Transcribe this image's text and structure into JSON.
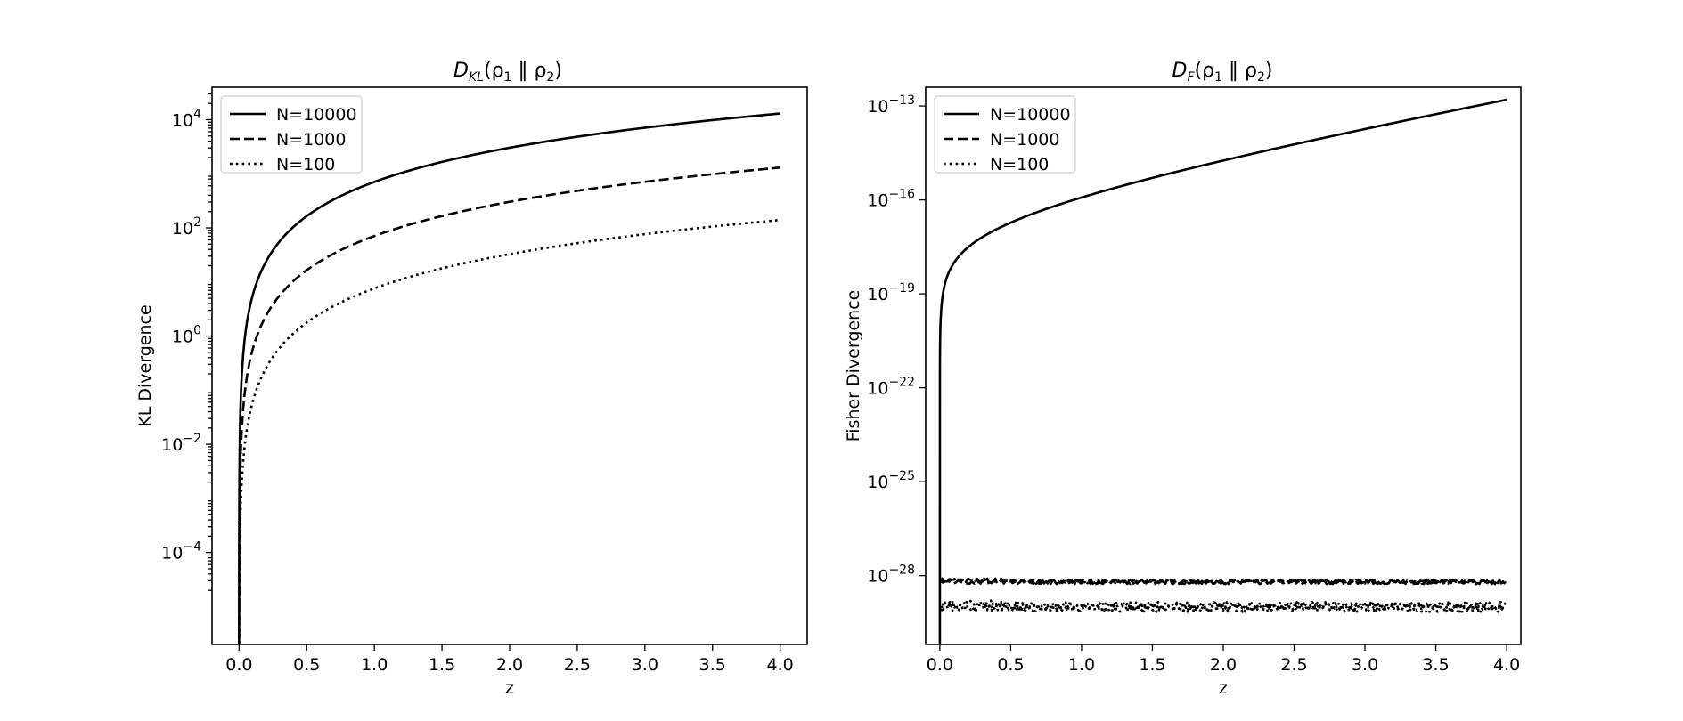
{
  "chart_data": [
    {
      "type": "line",
      "title_main": "D",
      "title_sub": "KL",
      "title_rest_open": "(ρ",
      "title_sub1": "1",
      "title_sep": " ‖ ρ",
      "title_sub2": "2",
      "title_close": ")",
      "xlabel": "z",
      "ylabel": "KL Divergence",
      "y_scale": "log",
      "xlim": [
        -0.2,
        4.2
      ],
      "ylim_log10": [
        -5.7,
        4.6
      ],
      "x_ticks": [
        "0.0",
        "0.5",
        "1.0",
        "1.5",
        "2.0",
        "2.5",
        "3.0",
        "3.5",
        "4.0"
      ],
      "y_ticks": [
        {
          "base": "10",
          "exp": "4",
          "value_log10": 4
        },
        {
          "base": "10",
          "exp": "2",
          "value_log10": 2
        },
        {
          "base": "10",
          "exp": "0",
          "value_log10": 0
        },
        {
          "base": "10",
          "exp": "−2",
          "value_log10": -2
        },
        {
          "base": "10",
          "exp": "−4",
          "value_log10": -4
        }
      ],
      "legend_position": "top-left",
      "series": [
        {
          "name": "N=10000",
          "style": "solid",
          "kind": "kl",
          "value_at_z4": 13000
        },
        {
          "name": "N=1000",
          "style": "dashed",
          "kind": "kl",
          "value_at_z4": 1300
        },
        {
          "name": "N=100",
          "style": "dotted",
          "kind": "kl",
          "value_at_z4": 140
        }
      ]
    },
    {
      "type": "line",
      "title_main": "D",
      "title_sub": "F",
      "title_rest_open": "(ρ",
      "title_sub1": "1",
      "title_sep": " ‖ ρ",
      "title_sub2": "2",
      "title_close": ")",
      "xlabel": "z",
      "ylabel": "Fisher Divergence",
      "y_scale": "log",
      "xlim": [
        -0.1,
        4.1
      ],
      "ylim_log10": [
        -30.2,
        -12.4
      ],
      "x_ticks": [
        "0.0",
        "0.5",
        "1.0",
        "1.5",
        "2.0",
        "2.5",
        "3.0",
        "3.5",
        "4.0"
      ],
      "y_ticks": [
        {
          "base": "10",
          "exp": "−13",
          "value_log10": -13
        },
        {
          "base": "10",
          "exp": "−16",
          "value_log10": -16
        },
        {
          "base": "10",
          "exp": "−19",
          "value_log10": -19
        },
        {
          "base": "10",
          "exp": "−22",
          "value_log10": -22
        },
        {
          "base": "10",
          "exp": "−25",
          "value_log10": -25
        },
        {
          "base": "10",
          "exp": "−28",
          "value_log10": -28
        }
      ],
      "legend_position": "top-left",
      "series": [
        {
          "name": "N=10000",
          "style": "solid",
          "kind": "fisher_growth",
          "value_at_z4_log10": -12.8
        },
        {
          "name": "N=1000",
          "style": "dashed",
          "kind": "noise_floor",
          "level_log10": -28.2
        },
        {
          "name": "N=100",
          "style": "dotted",
          "kind": "noise_floor",
          "level_log10": -29.0
        }
      ]
    }
  ]
}
